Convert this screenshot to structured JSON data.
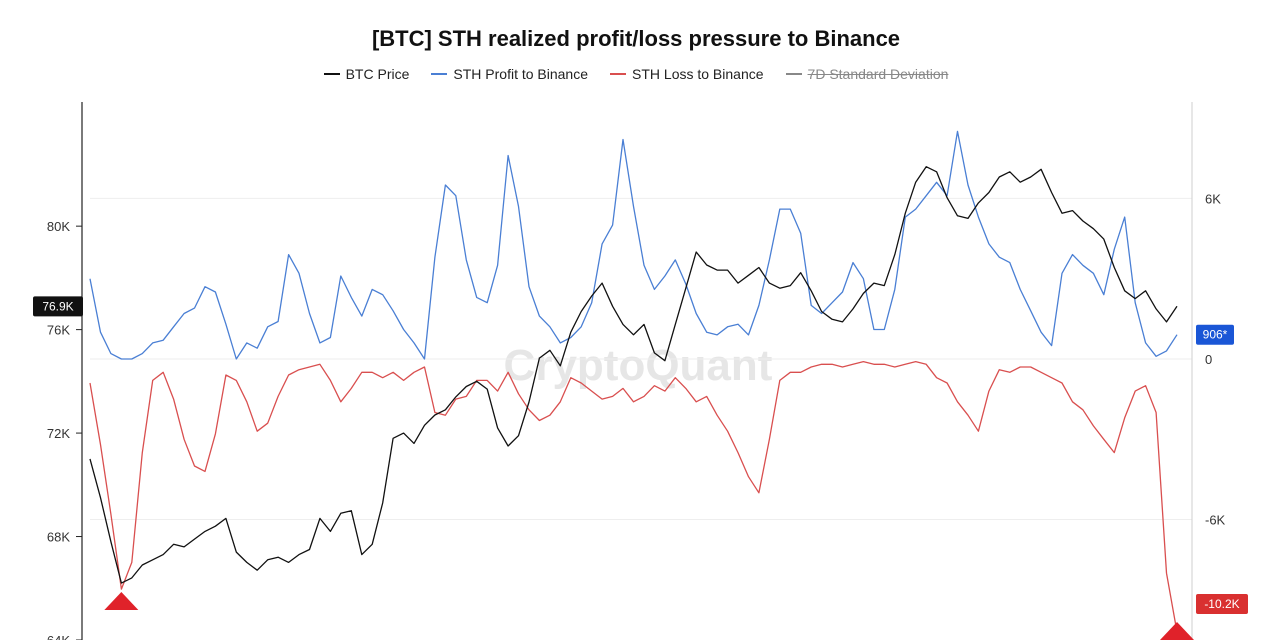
{
  "chart_data": {
    "type": "line",
    "title": "[BTC] STH realized profit/loss pressure to Binance",
    "watermark": "CryptoQuant",
    "legend_position": "top-center",
    "grid": true,
    "y_left": {
      "ylim": [
        64000,
        84800
      ],
      "ticks": [
        64000,
        68000,
        72000,
        76000,
        80000
      ],
      "tick_labels": [
        "64K",
        "68K",
        "72K",
        "76K",
        "80K"
      ]
    },
    "y_right": {
      "ylim": [
        -10500,
        9600
      ],
      "ticks": [
        -6000,
        0,
        6000
      ],
      "tick_labels": [
        "-6K",
        "0",
        "6K"
      ]
    },
    "series": [
      {
        "name": "BTC Price",
        "axis": "left",
        "color": "#111111",
        "visible": true,
        "values": [
          71000,
          69500,
          67800,
          66200,
          66400,
          66900,
          67100,
          67300,
          67700,
          67600,
          67900,
          68200,
          68400,
          68700,
          67400,
          67000,
          66700,
          67100,
          67200,
          67000,
          67300,
          67500,
          68700,
          68200,
          68900,
          69000,
          67300,
          67700,
          69300,
          71800,
          72000,
          71600,
          72300,
          72700,
          72900,
          73400,
          73800,
          74000,
          73700,
          72200,
          71500,
          71900,
          73200,
          74900,
          75200,
          74600,
          75900,
          76700,
          77300,
          77800,
          76900,
          76200,
          75800,
          76200,
          75100,
          74800,
          76200,
          77600,
          79000,
          78500,
          78300,
          78300,
          77800,
          78100,
          78400,
          77800,
          77600,
          77700,
          78200,
          77500,
          76700,
          76400,
          76300,
          76800,
          77400,
          77800,
          77700,
          78900,
          80500,
          81700,
          82300,
          82100,
          81100,
          80400,
          80300,
          80900,
          81300,
          81900,
          82100,
          81700,
          81900,
          82200,
          81300,
          80500,
          80600,
          80200,
          79900,
          79500,
          78400,
          77500,
          77200,
          77500,
          76800,
          76300,
          76900
        ]
      },
      {
        "name": "STH Profit to Binance",
        "axis": "right",
        "color": "#4a7fd4",
        "visible": true,
        "values": [
          3000,
          1000,
          200,
          0,
          0,
          200,
          600,
          700,
          1200,
          1700,
          1900,
          2700,
          2500,
          1300,
          0,
          600,
          400,
          1200,
          1400,
          3900,
          3200,
          1700,
          600,
          800,
          3100,
          2300,
          1600,
          2600,
          2400,
          1800,
          1100,
          600,
          0,
          3800,
          6500,
          6100,
          3700,
          2300,
          2100,
          3500,
          7600,
          5700,
          2700,
          1600,
          1200,
          600,
          800,
          1200,
          2100,
          4300,
          5000,
          8200,
          5700,
          3500,
          2600,
          3100,
          3700,
          2800,
          1700,
          1000,
          900,
          1200,
          1300,
          900,
          2000,
          3700,
          5600,
          5600,
          4700,
          2000,
          1700,
          2100,
          2500,
          3600,
          3000,
          1100,
          1100,
          2600,
          5300,
          5600,
          6100,
          6600,
          6100,
          8500,
          6500,
          5300,
          4300,
          3800,
          3600,
          2600,
          1800,
          1000,
          500,
          3200,
          3900,
          3500,
          3200,
          2400,
          4100,
          5300,
          2100,
          600,
          100,
          300,
          906
        ]
      },
      {
        "name": "STH Loss to Binance",
        "axis": "right",
        "color": "#d94f4f",
        "visible": true,
        "values": [
          -900,
          -3200,
          -5800,
          -8600,
          -7600,
          -3500,
          -800,
          -500,
          -1500,
          -3000,
          -4000,
          -4200,
          -2800,
          -600,
          -800,
          -1600,
          -2700,
          -2400,
          -1400,
          -600,
          -400,
          -300,
          -200,
          -800,
          -1600,
          -1100,
          -500,
          -500,
          -700,
          -500,
          -800,
          -500,
          -300,
          -2000,
          -2100,
          -1500,
          -1400,
          -800,
          -800,
          -1200,
          -500,
          -1300,
          -1900,
          -2300,
          -2100,
          -1600,
          -700,
          -900,
          -1200,
          -1500,
          -1400,
          -1100,
          -1600,
          -1400,
          -1000,
          -1200,
          -700,
          -1100,
          -1600,
          -1400,
          -2100,
          -2700,
          -3500,
          -4400,
          -5000,
          -3000,
          -800,
          -500,
          -500,
          -300,
          -200,
          -200,
          -300,
          -200,
          -100,
          -200,
          -200,
          -300,
          -200,
          -100,
          -200,
          -700,
          -900,
          -1600,
          -2100,
          -2700,
          -1200,
          -400,
          -500,
          -300,
          -300,
          -500,
          -700,
          -900,
          -1600,
          -1900,
          -2500,
          -3000,
          -3500,
          -2200,
          -1200,
          -1000,
          -2000,
          -8000,
          -10200
        ]
      },
      {
        "name": "7D Standard Deviation",
        "axis": "right",
        "color": "#222222",
        "visible": false,
        "values": []
      }
    ],
    "current_value_badges": [
      {
        "axis": "left",
        "label": "76.9K",
        "value": 76900,
        "color": "#111111"
      },
      {
        "axis": "right",
        "label": "906*",
        "value": 906,
        "color": "#1a56d6"
      },
      {
        "axis": "right",
        "label": "-10.2K",
        "value": -10200,
        "color": "#d93030"
      }
    ],
    "markers": [
      {
        "shape": "triangle-up",
        "color": "#e0222a",
        "x_index": 3
      },
      {
        "shape": "triangle-up",
        "color": "#e0222a",
        "x_index": 104
      }
    ]
  }
}
